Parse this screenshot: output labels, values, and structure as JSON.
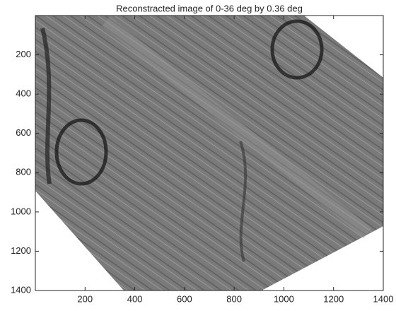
{
  "chart_data": {
    "type": "image",
    "title": "Reconstracted image of 0-36 deg by 0.36 deg",
    "xlim": [
      0,
      1400
    ],
    "xticks": [
      200,
      400,
      600,
      800,
      1000,
      1200,
      1400
    ],
    "ylim": [
      0,
      1400
    ],
    "yticks": [
      200,
      400,
      600,
      800,
      1000,
      1200,
      1400
    ],
    "y_reversed": true
  }
}
